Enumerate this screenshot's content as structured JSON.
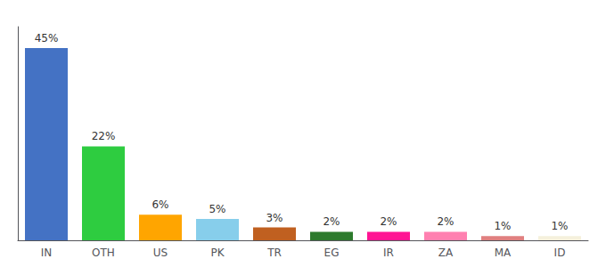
{
  "chart_data": {
    "type": "bar",
    "categories": [
      "IN",
      "OTH",
      "US",
      "PK",
      "TR",
      "EG",
      "IR",
      "ZA",
      "MA",
      "ID"
    ],
    "values": [
      45,
      22,
      6,
      5,
      3,
      2,
      2,
      2,
      1,
      1
    ],
    "value_labels": [
      "45%",
      "22%",
      "6%",
      "5%",
      "3%",
      "2%",
      "2%",
      "2%",
      "1%",
      "1%"
    ],
    "colors": [
      "#4472C4",
      "#2ECC40",
      "#FFA500",
      "#87CEEB",
      "#C06020",
      "#2D7A2D",
      "#FF1493",
      "#FF80B0",
      "#E08080",
      "#F5F0DC"
    ],
    "ylim": [
      0,
      50
    ],
    "data_labels": true,
    "tick_labels": "x",
    "grid": false
  }
}
